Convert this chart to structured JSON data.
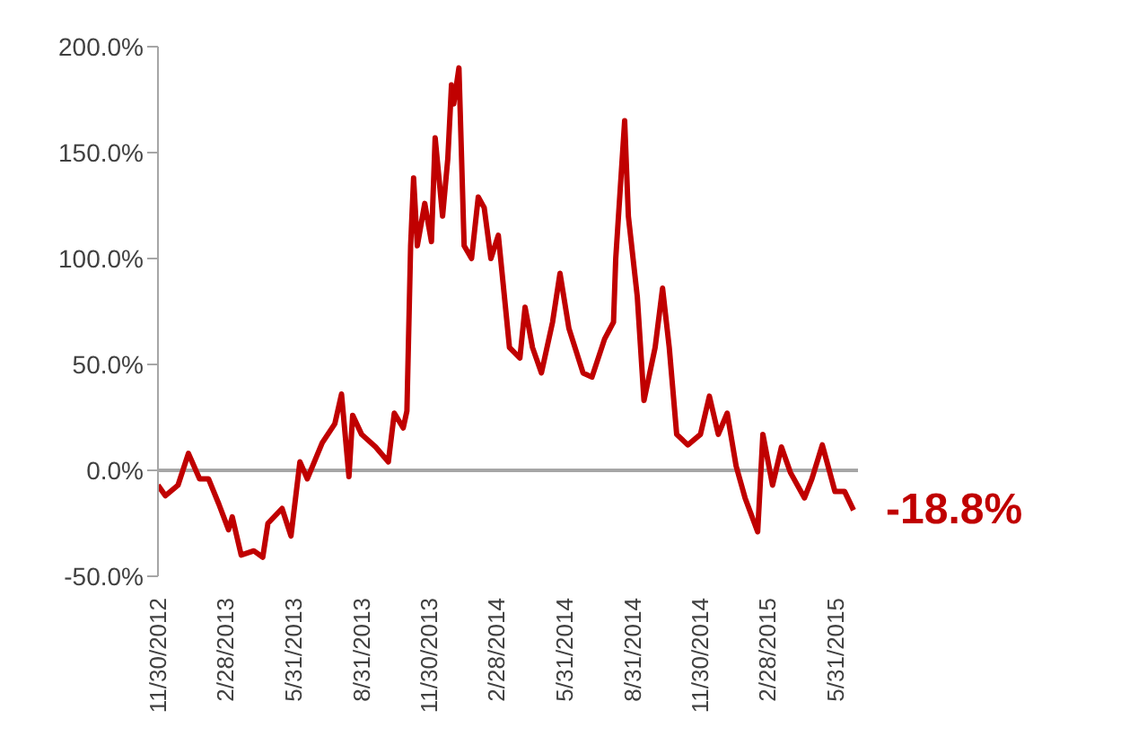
{
  "chart_data": {
    "type": "line",
    "x": [
      "2012-11-30",
      "2012-12-10",
      "2012-12-27",
      "2013-01-10",
      "2013-01-25",
      "2013-02-06",
      "2013-02-20",
      "2013-03-05",
      "2013-03-10",
      "2013-03-22",
      "2013-04-08",
      "2013-04-20",
      "2013-04-27",
      "2013-05-16",
      "2013-05-28",
      "2013-06-09",
      "2013-06-19",
      "2013-07-09",
      "2013-07-26",
      "2013-08-04",
      "2013-08-14",
      "2013-08-19",
      "2013-08-31",
      "2013-09-19",
      "2013-10-06",
      "2013-10-14",
      "2013-10-26",
      "2013-10-31",
      "2013-11-05",
      "2013-11-09",
      "2013-11-14",
      "2013-11-24",
      "2013-12-03",
      "2013-12-08",
      "2013-12-18",
      "2013-12-25",
      "2013-12-30",
      "2014-01-02",
      "2014-01-09",
      "2014-01-16",
      "2014-01-26",
      "2014-02-04",
      "2014-02-12",
      "2014-02-21",
      "2014-03-03",
      "2014-03-18",
      "2014-04-01",
      "2014-04-08",
      "2014-04-18",
      "2014-04-30",
      "2014-05-15",
      "2014-05-25",
      "2014-06-06",
      "2014-06-25",
      "2014-07-07",
      "2014-07-24",
      "2014-08-05",
      "2014-08-08",
      "2014-08-20",
      "2014-08-25",
      "2014-09-06",
      "2014-09-15",
      "2014-09-30",
      "2014-10-10",
      "2014-10-19",
      "2014-10-29",
      "2014-11-13",
      "2014-11-30",
      "2014-12-12",
      "2014-12-24",
      "2015-01-05",
      "2015-01-17",
      "2015-01-29",
      "2015-02-15",
      "2015-02-22",
      "2015-03-07",
      "2015-03-19",
      "2015-03-31",
      "2015-04-19",
      "2015-04-29",
      "2015-05-13",
      "2015-05-30",
      "2015-06-12",
      "2015-06-24"
    ],
    "series": [
      {
        "color": "#c00000",
        "values": [
          -7,
          -12,
          -7,
          8,
          -4,
          -4,
          -16,
          -28,
          -22,
          -40,
          -38,
          -41,
          -25,
          -18,
          -31,
          4,
          -4,
          13,
          22,
          36,
          -3,
          26,
          17,
          11,
          4,
          27,
          20,
          28,
          106,
          138,
          106,
          126,
          108,
          157,
          120,
          147,
          182,
          173,
          190,
          106,
          100,
          129,
          124,
          100,
          111,
          58,
          53,
          77,
          58,
          46,
          70,
          93,
          67,
          46,
          44,
          62,
          70,
          100,
          165,
          120,
          82,
          33,
          58,
          86,
          58,
          17,
          12,
          17,
          35,
          17,
          27,
          2,
          -13,
          -29,
          17,
          -7,
          11,
          -1,
          -13,
          -4,
          12,
          -10,
          -10,
          -18.8
        ]
      }
    ],
    "xlim": [
      "2012-11-30",
      "2015-06-30"
    ],
    "xticks": [
      {
        "value": "2012-11-30",
        "label": "11/30/2012"
      },
      {
        "value": "2013-02-28",
        "label": "2/28/2013"
      },
      {
        "value": "2013-05-31",
        "label": "5/31/2013"
      },
      {
        "value": "2013-08-31",
        "label": "8/31/2013"
      },
      {
        "value": "2013-11-30",
        "label": "11/30/2013"
      },
      {
        "value": "2014-02-28",
        "label": "2/28/2014"
      },
      {
        "value": "2014-05-31",
        "label": "5/31/2014"
      },
      {
        "value": "2014-08-31",
        "label": "8/31/2014"
      },
      {
        "value": "2014-11-30",
        "label": "11/30/2014"
      },
      {
        "value": "2015-02-28",
        "label": "2/28/2015"
      },
      {
        "value": "2015-05-31",
        "label": "5/31/2015"
      }
    ],
    "ylim": [
      -50,
      200
    ],
    "yticks": [
      {
        "value": -50,
        "label": "-50.0%"
      },
      {
        "value": 0,
        "label": "0.0%"
      },
      {
        "value": 50,
        "label": "50.0%"
      },
      {
        "value": 100,
        "label": "100.0%"
      },
      {
        "value": 150,
        "label": "150.0%"
      },
      {
        "value": 200,
        "label": "200.0%"
      }
    ],
    "ref_lines": [
      {
        "axis": "y",
        "value": 0,
        "color": "#a6a6a6"
      }
    ],
    "annotations": [
      "-18.8%"
    ],
    "grid": false,
    "legend": false,
    "marker": "none",
    "line_style": "solid"
  }
}
